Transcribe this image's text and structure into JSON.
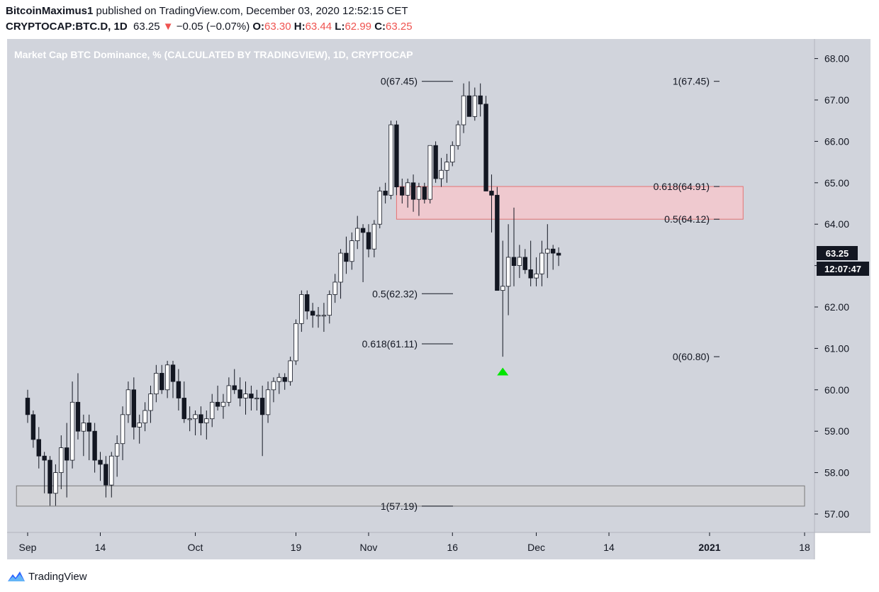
{
  "header": {
    "author": "BitcoinMaximus1",
    "published_text": " published on TradingView.com, December 03, 2020 12:52:15 CET",
    "symbol": "CRYPTOCAP:BTC.D, 1D",
    "last": "63.25",
    "change_arrow": "▼",
    "change": "−0.05 (−0.07%)",
    "open_label": "O:",
    "open": "63.30",
    "high_label": "H:",
    "high": "63.44",
    "low_label": "L:",
    "low": "62.99",
    "close_label": "C:",
    "close": "63.25"
  },
  "footer": {
    "brand": "TradingView"
  },
  "chart_data": {
    "type": "candlestick",
    "title": "Market Cap BTC Dominance, % (CALCULATED BY TRADINGVIEW), 1D, CRYPTOCAP",
    "ylim": [
      56.5,
      68.5
    ],
    "y_ticks": [
      "57.00",
      "58.00",
      "59.00",
      "60.00",
      "61.00",
      "62.00",
      "63.00",
      "64.00",
      "65.00",
      "66.00",
      "67.00",
      "68.00"
    ],
    "x_ticks": [
      {
        "label": "Sep",
        "day": 0
      },
      {
        "label": "14",
        "day": 13
      },
      {
        "label": "Oct",
        "day": 30
      },
      {
        "label": "19",
        "day": 48
      },
      {
        "label": "Nov",
        "day": 61
      },
      {
        "label": "16",
        "day": 76
      },
      {
        "label": "Dec",
        "day": 91
      },
      {
        "label": "14",
        "day": 104
      },
      {
        "label": "2021",
        "day": 122
      },
      {
        "label": "18",
        "day": 139
      }
    ],
    "price_label": "63.25",
    "countdown_label": "12:07:47",
    "colors": {
      "up_body": "#ffffff",
      "down_body": "#131722",
      "wick": "#131722",
      "background": "#d1d4dc",
      "marker": "#00e600"
    },
    "ohlc": [
      [
        59.8,
        60.0,
        59.2,
        59.4
      ],
      [
        59.4,
        59.5,
        58.6,
        58.8
      ],
      [
        58.8,
        59.1,
        58.1,
        58.4
      ],
      [
        58.4,
        58.5,
        57.5,
        58.3
      ],
      [
        58.3,
        58.4,
        57.2,
        57.5
      ],
      [
        57.5,
        58.2,
        57.2,
        58.0
      ],
      [
        58.0,
        58.9,
        57.6,
        58.6
      ],
      [
        58.6,
        59.2,
        57.4,
        58.3
      ],
      [
        58.3,
        60.2,
        58.1,
        59.7
      ],
      [
        59.7,
        60.4,
        58.8,
        59.0
      ],
      [
        59.0,
        59.4,
        58.4,
        59.2
      ],
      [
        59.2,
        59.4,
        58.3,
        59.0
      ],
      [
        59.0,
        59.2,
        58.0,
        58.3
      ],
      [
        58.3,
        58.5,
        57.8,
        58.2
      ],
      [
        58.2,
        58.4,
        57.4,
        57.7
      ],
      [
        57.7,
        58.5,
        57.4,
        58.4
      ],
      [
        58.4,
        58.9,
        57.9,
        58.7
      ],
      [
        58.7,
        59.6,
        58.3,
        59.4
      ],
      [
        59.4,
        60.2,
        59.2,
        60.0
      ],
      [
        60.0,
        60.3,
        58.8,
        59.1
      ],
      [
        59.1,
        59.4,
        58.7,
        59.2
      ],
      [
        59.2,
        59.7,
        59.0,
        59.5
      ],
      [
        59.5,
        60.1,
        59.2,
        59.9
      ],
      [
        59.9,
        60.6,
        59.7,
        60.4
      ],
      [
        60.4,
        60.6,
        59.9,
        60.0
      ],
      [
        60.0,
        60.7,
        59.8,
        60.6
      ],
      [
        60.6,
        60.7,
        59.8,
        60.2
      ],
      [
        60.2,
        60.5,
        59.5,
        59.8
      ],
      [
        59.8,
        60.2,
        59.2,
        59.3
      ],
      [
        59.3,
        59.6,
        59.0,
        59.3
      ],
      [
        59.3,
        59.5,
        58.9,
        59.4
      ],
      [
        59.4,
        59.6,
        58.9,
        59.2
      ],
      [
        59.2,
        59.5,
        58.8,
        59.3
      ],
      [
        59.3,
        59.9,
        59.1,
        59.7
      ],
      [
        59.7,
        60.1,
        59.5,
        59.6
      ],
      [
        59.6,
        59.9,
        59.3,
        59.7
      ],
      [
        59.7,
        60.3,
        59.6,
        60.1
      ],
      [
        60.1,
        60.5,
        59.9,
        60.0
      ],
      [
        60.0,
        60.3,
        59.6,
        59.8
      ],
      [
        59.8,
        60.2,
        59.4,
        59.9
      ],
      [
        59.9,
        60.1,
        59.5,
        59.8
      ],
      [
        59.8,
        60.0,
        59.5,
        59.8
      ],
      [
        59.8,
        60.1,
        58.4,
        59.4
      ],
      [
        59.4,
        60.2,
        59.2,
        60.0
      ],
      [
        60.0,
        60.3,
        59.7,
        60.2
      ],
      [
        60.2,
        60.4,
        59.9,
        60.3
      ],
      [
        60.3,
        60.4,
        60.0,
        60.2
      ],
      [
        60.2,
        60.8,
        60.1,
        60.7
      ],
      [
        60.7,
        61.7,
        60.6,
        61.6
      ],
      [
        61.6,
        62.4,
        61.4,
        62.3
      ],
      [
        62.3,
        62.4,
        61.7,
        61.9
      ],
      [
        61.9,
        62.1,
        61.5,
        61.8
      ],
      [
        61.8,
        62.0,
        61.5,
        61.8
      ],
      [
        61.8,
        62.1,
        61.4,
        61.8
      ],
      [
        61.8,
        62.4,
        61.6,
        62.3
      ],
      [
        62.3,
        62.8,
        62.1,
        62.6
      ],
      [
        62.6,
        63.4,
        62.2,
        63.3
      ],
      [
        63.3,
        63.7,
        62.8,
        63.1
      ],
      [
        63.1,
        63.8,
        62.9,
        63.6
      ],
      [
        63.6,
        64.2,
        63.4,
        63.9
      ],
      [
        63.9,
        64.0,
        62.6,
        63.8
      ],
      [
        63.8,
        64.0,
        63.2,
        63.4
      ],
      [
        63.4,
        64.1,
        63.2,
        64.0
      ],
      [
        64.0,
        64.9,
        63.9,
        64.8
      ],
      [
        64.8,
        65.0,
        64.5,
        64.7
      ],
      [
        64.7,
        66.5,
        64.6,
        66.4
      ],
      [
        66.4,
        66.5,
        64.7,
        64.9
      ],
      [
        64.9,
        65.1,
        64.5,
        64.7
      ],
      [
        64.7,
        65.1,
        64.4,
        65.0
      ],
      [
        65.0,
        65.2,
        64.3,
        64.6
      ],
      [
        64.6,
        65.0,
        64.2,
        64.9
      ],
      [
        64.9,
        65.0,
        64.5,
        64.6
      ],
      [
        64.6,
        65.9,
        64.5,
        65.9
      ],
      [
        65.9,
        66.0,
        65.0,
        65.1
      ],
      [
        65.1,
        65.6,
        64.9,
        65.3
      ],
      [
        65.3,
        65.7,
        65.0,
        65.5
      ],
      [
        65.5,
        66.0,
        65.4,
        65.9
      ],
      [
        65.9,
        66.5,
        65.8,
        66.4
      ],
      [
        66.4,
        67.4,
        66.2,
        67.1
      ],
      [
        67.1,
        67.45,
        66.6,
        66.6
      ],
      [
        66.6,
        67.3,
        66.5,
        67.1
      ],
      [
        67.1,
        67.4,
        66.6,
        66.9
      ],
      [
        66.9,
        67.1,
        64.8,
        64.8
      ],
      [
        64.8,
        65.2,
        63.8,
        64.7
      ],
      [
        64.7,
        64.9,
        62.4,
        62.4
      ],
      [
        62.4,
        63.6,
        60.8,
        62.5
      ],
      [
        62.5,
        64.0,
        61.8,
        63.2
      ],
      [
        63.2,
        64.4,
        62.5,
        63.0
      ],
      [
        63.0,
        63.5,
        62.7,
        63.2
      ],
      [
        63.2,
        63.4,
        62.8,
        62.9
      ],
      [
        62.9,
        63.6,
        62.5,
        62.7
      ],
      [
        62.7,
        63.2,
        62.5,
        62.8
      ],
      [
        62.8,
        63.6,
        62.5,
        63.3
      ],
      [
        63.3,
        64.0,
        62.7,
        63.4
      ],
      [
        63.4,
        63.5,
        62.9,
        63.3
      ],
      [
        63.3,
        63.44,
        62.99,
        63.25
      ]
    ],
    "fib_levels": [
      {
        "label": "0(67.45)",
        "value": 67.45,
        "d1": 73,
        "d2": 82,
        "side": "left"
      },
      {
        "label": "0.5(62.32)",
        "value": 62.32,
        "d1": 73,
        "d2": 82,
        "side": "left"
      },
      {
        "label": "0.618(61.11)",
        "value": 61.11,
        "d1": 73,
        "d2": 82,
        "side": "left"
      },
      {
        "label": "1(57.19)",
        "value": 57.19,
        "d1": 73,
        "d2": 82,
        "side": "left"
      },
      {
        "label": "1(67.45)",
        "value": 67.45,
        "d1": 123,
        "d2": 124,
        "side": "left"
      },
      {
        "label": "0.618(64.91)",
        "value": 64.91,
        "d1": 124,
        "d2": 125,
        "side": "left"
      },
      {
        "label": "0.5(64.12)",
        "value": 64.12,
        "d1": 124,
        "d2": 125,
        "side": "left"
      },
      {
        "label": "0(60.80)",
        "value": 60.8,
        "d1": 123,
        "d2": 124,
        "side": "left"
      }
    ],
    "zones": [
      {
        "name": "resistance",
        "d1": 66,
        "d2": 128,
        "y1": 64.12,
        "y2": 64.91,
        "fill": "#f4c7cc",
        "stroke": "#e57373"
      },
      {
        "name": "support",
        "d1": -2,
        "d2": 139,
        "y1": 57.19,
        "y2": 57.68,
        "fill": "#d4d4d7",
        "stroke": "#7a7a7a"
      }
    ],
    "marker": {
      "day": 85,
      "value": 60.45,
      "shape": "triangle-up"
    }
  }
}
